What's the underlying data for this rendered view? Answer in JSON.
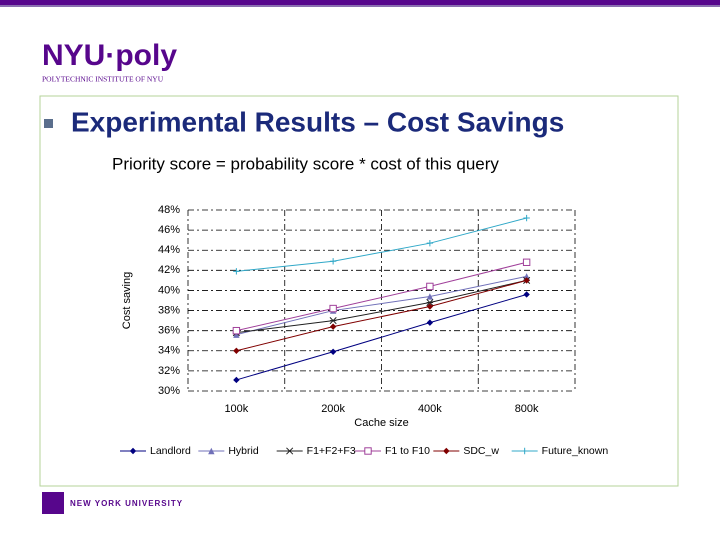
{
  "slide": {
    "logo": "NYU·poly",
    "logo_sub": "POLYTECHNIC INSTITUTE OF NYU",
    "title": "Experimental Results – Cost Savings",
    "subtitle": "Priority score = probability score * cost of this query",
    "footer": "NEW YORK UNIVERSITY"
  },
  "chart_data": {
    "type": "line",
    "xlabel": "Cache size",
    "ylabel": "Cost saving",
    "categories": [
      "100k",
      "200k",
      "400k",
      "800k"
    ],
    "ylim": [
      30,
      48
    ],
    "yticks": [
      {
        "value": 30,
        "label": "30%"
      },
      {
        "value": 32,
        "label": "32%"
      },
      {
        "value": 34,
        "label": "34%"
      },
      {
        "value": 36,
        "label": "36%"
      },
      {
        "value": 38,
        "label": "38%"
      },
      {
        "value": 40,
        "label": "40%"
      },
      {
        "value": 42,
        "label": "42%"
      },
      {
        "value": 44,
        "label": "44%"
      },
      {
        "value": 46,
        "label": "46%"
      },
      {
        "value": 48,
        "label": "48%"
      }
    ],
    "grid": true,
    "legend": "bottom",
    "series": [
      {
        "name": "Landlord",
        "color": "#000080",
        "marker": "diamond",
        "values": [
          31.1,
          33.9,
          36.8,
          39.6
        ]
      },
      {
        "name": "Hybrid",
        "color": "#7070b8",
        "marker": "triangle",
        "values": [
          35.6,
          38,
          39.4,
          41.4
        ]
      },
      {
        "name": "F1+F2+F3",
        "color": "#202020",
        "marker": "star",
        "values": [
          35.8,
          37,
          38.8,
          41
        ]
      },
      {
        "name": "F1 to F10",
        "color": "#a0409a",
        "marker": "square",
        "values": [
          36,
          38.2,
          40.4,
          42.8
        ]
      },
      {
        "name": "SDC_w",
        "color": "#800000",
        "marker": "diamond",
        "values": [
          34,
          36.4,
          38.4,
          41
        ]
      },
      {
        "name": "Future_known",
        "color": "#30a8c8",
        "marker": "plus",
        "values": [
          41.9,
          42.9,
          44.7,
          47.2
        ]
      }
    ]
  }
}
